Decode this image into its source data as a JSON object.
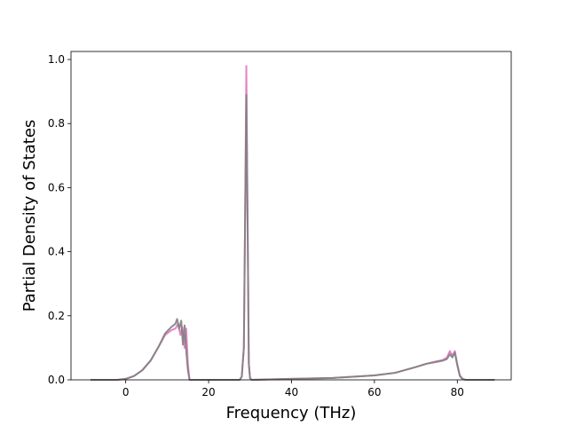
{
  "chart_data": {
    "type": "line",
    "title": "",
    "xlabel": "Frequency (THz)",
    "ylabel": "Partial Density of States",
    "xlim": [
      -13.2,
      93.0
    ],
    "ylim": [
      0.0,
      1.025
    ],
    "x_ticks": [
      0,
      20,
      40,
      60,
      80
    ],
    "y_ticks": [
      0.0,
      0.2,
      0.4,
      0.6,
      0.8,
      1.0
    ],
    "x_tick_labels": [
      "0",
      "20",
      "40",
      "60",
      "80"
    ],
    "y_tick_labels": [
      "0.0",
      "0.2",
      "0.4",
      "0.6",
      "0.8",
      "1.0"
    ],
    "grid": false,
    "legend": "none",
    "series": [
      {
        "color": "#e377c2",
        "x": [
          -8.5,
          -2,
          0,
          2,
          4,
          6,
          8,
          9.5,
          11,
          12,
          12.6,
          13.2,
          13.6,
          14.2,
          14.6,
          15,
          15.4,
          20,
          27.5,
          28,
          28.5,
          28.8,
          29.1,
          29.4,
          29.7,
          30,
          30.4,
          40,
          50,
          60,
          65,
          70,
          72.5,
          75,
          76.5,
          77.5,
          78.2,
          78.8,
          79.4,
          80,
          80.6,
          81.2,
          82,
          89
        ],
        "y": [
          0,
          0,
          0.003,
          0.012,
          0.03,
          0.06,
          0.105,
          0.14,
          0.155,
          0.16,
          0.175,
          0.14,
          0.165,
          0.1,
          0.16,
          0.05,
          0,
          0,
          0,
          0.01,
          0.1,
          0.5,
          0.98,
          0.5,
          0.05,
          0.005,
          0,
          0.003,
          0.006,
          0.014,
          0.022,
          0.04,
          0.05,
          0.058,
          0.062,
          0.07,
          0.09,
          0.075,
          0.09,
          0.05,
          0.015,
          0.004,
          0,
          0
        ]
      },
      {
        "color": "#7f7f7f",
        "x": [
          -8.5,
          -2,
          0,
          2,
          4,
          6,
          8,
          9.5,
          11,
          12,
          12.4,
          12.9,
          13.4,
          13.8,
          14.2,
          14.6,
          15,
          15.4,
          20,
          27.5,
          28,
          28.5,
          28.8,
          29.1,
          29.4,
          29.7,
          30,
          30.4,
          40,
          50,
          60,
          65,
          70,
          72.5,
          75,
          76.5,
          77.5,
          78.2,
          78.8,
          79.4,
          80,
          80.6,
          81.2,
          82,
          89
        ],
        "y": [
          0,
          0,
          0.003,
          0.012,
          0.03,
          0.06,
          0.105,
          0.145,
          0.165,
          0.175,
          0.19,
          0.16,
          0.185,
          0.11,
          0.17,
          0.09,
          0.03,
          0,
          0,
          0,
          0.01,
          0.1,
          0.5,
          0.89,
          0.5,
          0.05,
          0.005,
          0,
          0.003,
          0.006,
          0.014,
          0.022,
          0.04,
          0.05,
          0.056,
          0.06,
          0.065,
          0.08,
          0.07,
          0.085,
          0.045,
          0.012,
          0.003,
          0,
          0
        ]
      }
    ]
  }
}
